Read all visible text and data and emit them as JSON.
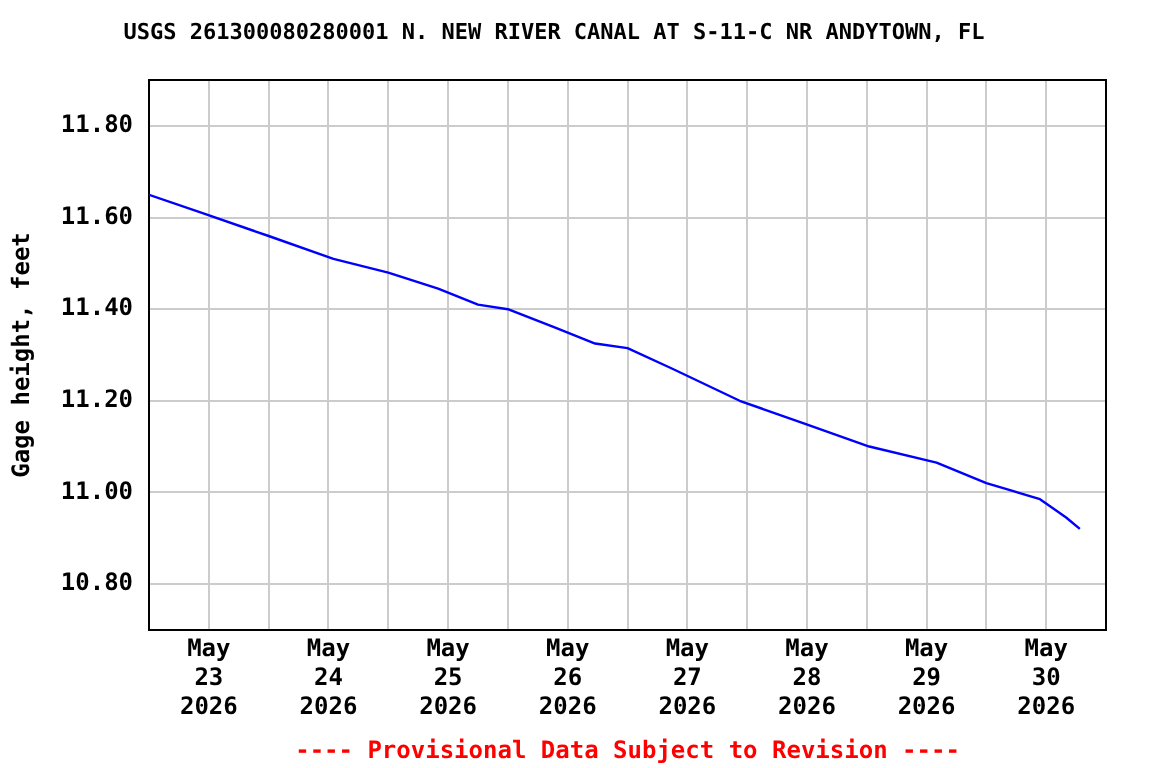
{
  "chart_data": {
    "type": "line",
    "title": "USGS 261300080280001 N. NEW RIVER CANAL AT S-11-C NR ANDYTOWN, FL",
    "ylabel": "Gage height, feet",
    "annotations": [
      "---- Provisional Data Subject to Revision ----"
    ],
    "series": [
      {
        "color": "#0000ff",
        "x": [
          "2026-05-22T12:00",
          "2026-05-22T22:45",
          "2026-05-23T12:00",
          "2026-05-24T01:00",
          "2026-05-24T12:00",
          "2026-05-24T22:00",
          "2026-05-25T06:00",
          "2026-05-25T12:00",
          "2026-05-25T21:30",
          "2026-05-26T05:30",
          "2026-05-26T12:00",
          "2026-05-26T21:00",
          "2026-05-27T10:30",
          "2026-05-27T23:30",
          "2026-05-28T12:30",
          "2026-05-29T02:00",
          "2026-05-29T12:00",
          "2026-05-29T22:45",
          "2026-05-30T04:00",
          "2026-05-30T06:45"
        ],
        "values": [
          11.65,
          11.61,
          11.56,
          11.51,
          11.48,
          11.445,
          11.41,
          11.4,
          11.36,
          11.325,
          11.315,
          11.27,
          11.2,
          11.15,
          11.1,
          11.065,
          11.02,
          10.985,
          10.945,
          10.92
        ]
      }
    ],
    "xlim": [
      "2026-05-22T12:00",
      "2026-05-30T12:00"
    ],
    "xticks": [
      {
        "value": "2026-05-23",
        "label": "May\n23\n2026"
      },
      {
        "value": "2026-05-23T12:00",
        "label": null
      },
      {
        "value": "2026-05-24",
        "label": "May\n24\n2026"
      },
      {
        "value": "2026-05-24T12:00",
        "label": null
      },
      {
        "value": "2026-05-25",
        "label": "May\n25\n2026"
      },
      {
        "value": "2026-05-25T12:00",
        "label": null
      },
      {
        "value": "2026-05-26",
        "label": "May\n26\n2026"
      },
      {
        "value": "2026-05-26T12:00",
        "label": null
      },
      {
        "value": "2026-05-27",
        "label": "May\n27\n2026"
      },
      {
        "value": "2026-05-27T12:00",
        "label": null
      },
      {
        "value": "2026-05-28",
        "label": "May\n28\n2026"
      },
      {
        "value": "2026-05-28T12:00",
        "label": null
      },
      {
        "value": "2026-05-29",
        "label": "May\n29\n2026"
      },
      {
        "value": "2026-05-29T12:00",
        "label": null
      },
      {
        "value": "2026-05-30",
        "label": "May\n30\n2026"
      }
    ],
    "ylim": [
      10.7,
      11.9
    ],
    "yticks": [
      {
        "value": 10.8,
        "label": "10.80"
      },
      {
        "value": 11.0,
        "label": "11.00"
      },
      {
        "value": 11.2,
        "label": "11.20"
      },
      {
        "value": 11.4,
        "label": "11.40"
      },
      {
        "value": 11.6,
        "label": "11.60"
      },
      {
        "value": 11.8,
        "label": "11.80"
      }
    ],
    "grid": true,
    "legend": false,
    "marker": "none",
    "line_style": "solid"
  }
}
